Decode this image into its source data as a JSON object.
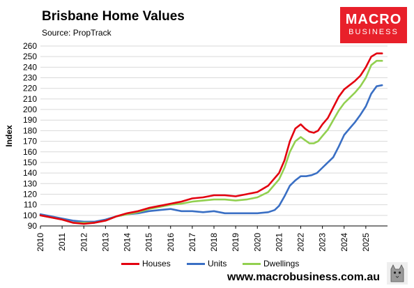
{
  "header": {
    "title": "Brisbane Home Values",
    "source": "Source: PropTrack"
  },
  "logo": {
    "line1": "MACRO",
    "line2": "BUSINESS"
  },
  "footer": {
    "website": "www.macrobusiness.com.au"
  },
  "colors": {
    "houses": "#e3000f",
    "units": "#3a6fc4",
    "dwellings": "#92d050",
    "grid": "#d9d9d9",
    "logo_bg": "#e8202a"
  },
  "chart_data": {
    "type": "line",
    "title": "Brisbane Home Values",
    "ylabel": "Index",
    "xlabel": "",
    "ylim": [
      90,
      260
    ],
    "xlim": [
      2010,
      2026
    ],
    "yticks": [
      "90",
      "100",
      "110",
      "120",
      "130",
      "140",
      "150",
      "160",
      "170",
      "180",
      "190",
      "200",
      "210",
      "220",
      "230",
      "240",
      "250",
      "260"
    ],
    "xticks": [
      "2010",
      "2011",
      "2012",
      "2013",
      "2014",
      "2015",
      "2016",
      "2017",
      "2018",
      "2019",
      "2020",
      "2021",
      "2022",
      "2023",
      "2024",
      "2025"
    ],
    "grid": "horizontal",
    "legend_position": "bottom",
    "series": [
      {
        "name": "Houses",
        "x": [
          2010.0,
          2010.5,
          2011.0,
          2011.5,
          2012.0,
          2012.5,
          2013.0,
          2013.5,
          2014.0,
          2014.5,
          2015.0,
          2015.5,
          2016.0,
          2016.5,
          2017.0,
          2017.5,
          2018.0,
          2018.5,
          2019.0,
          2019.5,
          2020.0,
          2020.5,
          2021.0,
          2021.25,
          2021.5,
          2021.75,
          2022.0,
          2022.2,
          2022.4,
          2022.6,
          2022.8,
          2023.0,
          2023.25,
          2023.5,
          2023.75,
          2024.0,
          2024.25,
          2024.5,
          2024.75,
          2025.0,
          2025.25,
          2025.5,
          2025.75
        ],
        "values": [
          100,
          98,
          96,
          93,
          92,
          93,
          95,
          99,
          102,
          104,
          107,
          109,
          111,
          113,
          116,
          117,
          119,
          119,
          118,
          120,
          122,
          128,
          140,
          152,
          170,
          182,
          186,
          182,
          179,
          178,
          180,
          186,
          192,
          202,
          212,
          219,
          223,
          227,
          232,
          240,
          250,
          253,
          253
        ]
      },
      {
        "name": "Units",
        "x": [
          2010.0,
          2010.5,
          2011.0,
          2011.5,
          2012.0,
          2012.5,
          2013.0,
          2013.5,
          2014.0,
          2014.5,
          2015.0,
          2015.5,
          2016.0,
          2016.5,
          2017.0,
          2017.5,
          2018.0,
          2018.5,
          2019.0,
          2019.5,
          2020.0,
          2020.5,
          2020.8,
          2021.0,
          2021.25,
          2021.5,
          2021.75,
          2022.0,
          2022.25,
          2022.5,
          2022.75,
          2023.0,
          2023.25,
          2023.5,
          2023.75,
          2024.0,
          2024.25,
          2024.5,
          2024.75,
          2025.0,
          2025.25,
          2025.5,
          2025.75
        ],
        "values": [
          101,
          99,
          97,
          95,
          94,
          94,
          96,
          99,
          101,
          102,
          104,
          105,
          106,
          104,
          104,
          103,
          104,
          102,
          102,
          102,
          102,
          103,
          105,
          109,
          118,
          128,
          133,
          137,
          137,
          138,
          140,
          145,
          150,
          155,
          165,
          176,
          182,
          188,
          195,
          203,
          215,
          222,
          223
        ]
      },
      {
        "name": "Dwellings",
        "x": [
          2010.0,
          2010.5,
          2011.0,
          2011.5,
          2012.0,
          2012.5,
          2013.0,
          2013.5,
          2014.0,
          2014.5,
          2015.0,
          2015.5,
          2016.0,
          2016.5,
          2017.0,
          2017.5,
          2018.0,
          2018.5,
          2019.0,
          2019.5,
          2020.0,
          2020.5,
          2021.0,
          2021.25,
          2021.5,
          2021.75,
          2022.0,
          2022.2,
          2022.4,
          2022.6,
          2022.8,
          2023.0,
          2023.25,
          2023.5,
          2023.75,
          2024.0,
          2024.25,
          2024.5,
          2024.75,
          2025.0,
          2025.25,
          2025.5,
          2025.75
        ],
        "values": [
          100,
          98,
          96,
          93,
          93,
          93,
          95,
          99,
          101,
          103,
          106,
          108,
          110,
          111,
          113,
          114,
          115,
          115,
          114,
          115,
          117,
          122,
          134,
          145,
          160,
          170,
          174,
          171,
          168,
          168,
          170,
          175,
          181,
          190,
          199,
          206,
          211,
          216,
          222,
          230,
          242,
          246,
          246
        ]
      }
    ]
  }
}
